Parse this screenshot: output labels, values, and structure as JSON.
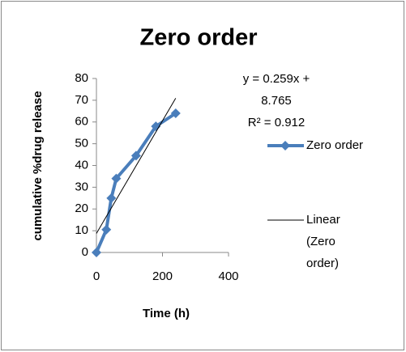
{
  "chart_data": {
    "type": "line",
    "title": "Zero order",
    "x_label": "Time (h)",
    "y_label": "cumulative %drug release",
    "series": [
      {
        "name": "Zero order",
        "color": "#4a7ebb",
        "x": [
          0,
          30,
          45,
          60,
          120,
          180,
          240
        ],
        "values": [
          0,
          10.5,
          25,
          34,
          44.5,
          58,
          64
        ]
      }
    ],
    "trendline": {
      "name": "Linear (Zero order)",
      "color": "#000000",
      "slope": 0.259,
      "intercept": 8.765,
      "r_squared": 0.912,
      "equation_label": "y = 0.259x + 8.765",
      "r_squared_label": "R² = 0.912"
    },
    "xlim": [
      0,
      400
    ],
    "xticks": [
      0,
      200,
      400
    ],
    "ylim": [
      0,
      80
    ],
    "yticks": [
      0,
      10,
      20,
      30,
      40,
      50,
      60,
      70,
      80
    ],
    "grid": false
  }
}
